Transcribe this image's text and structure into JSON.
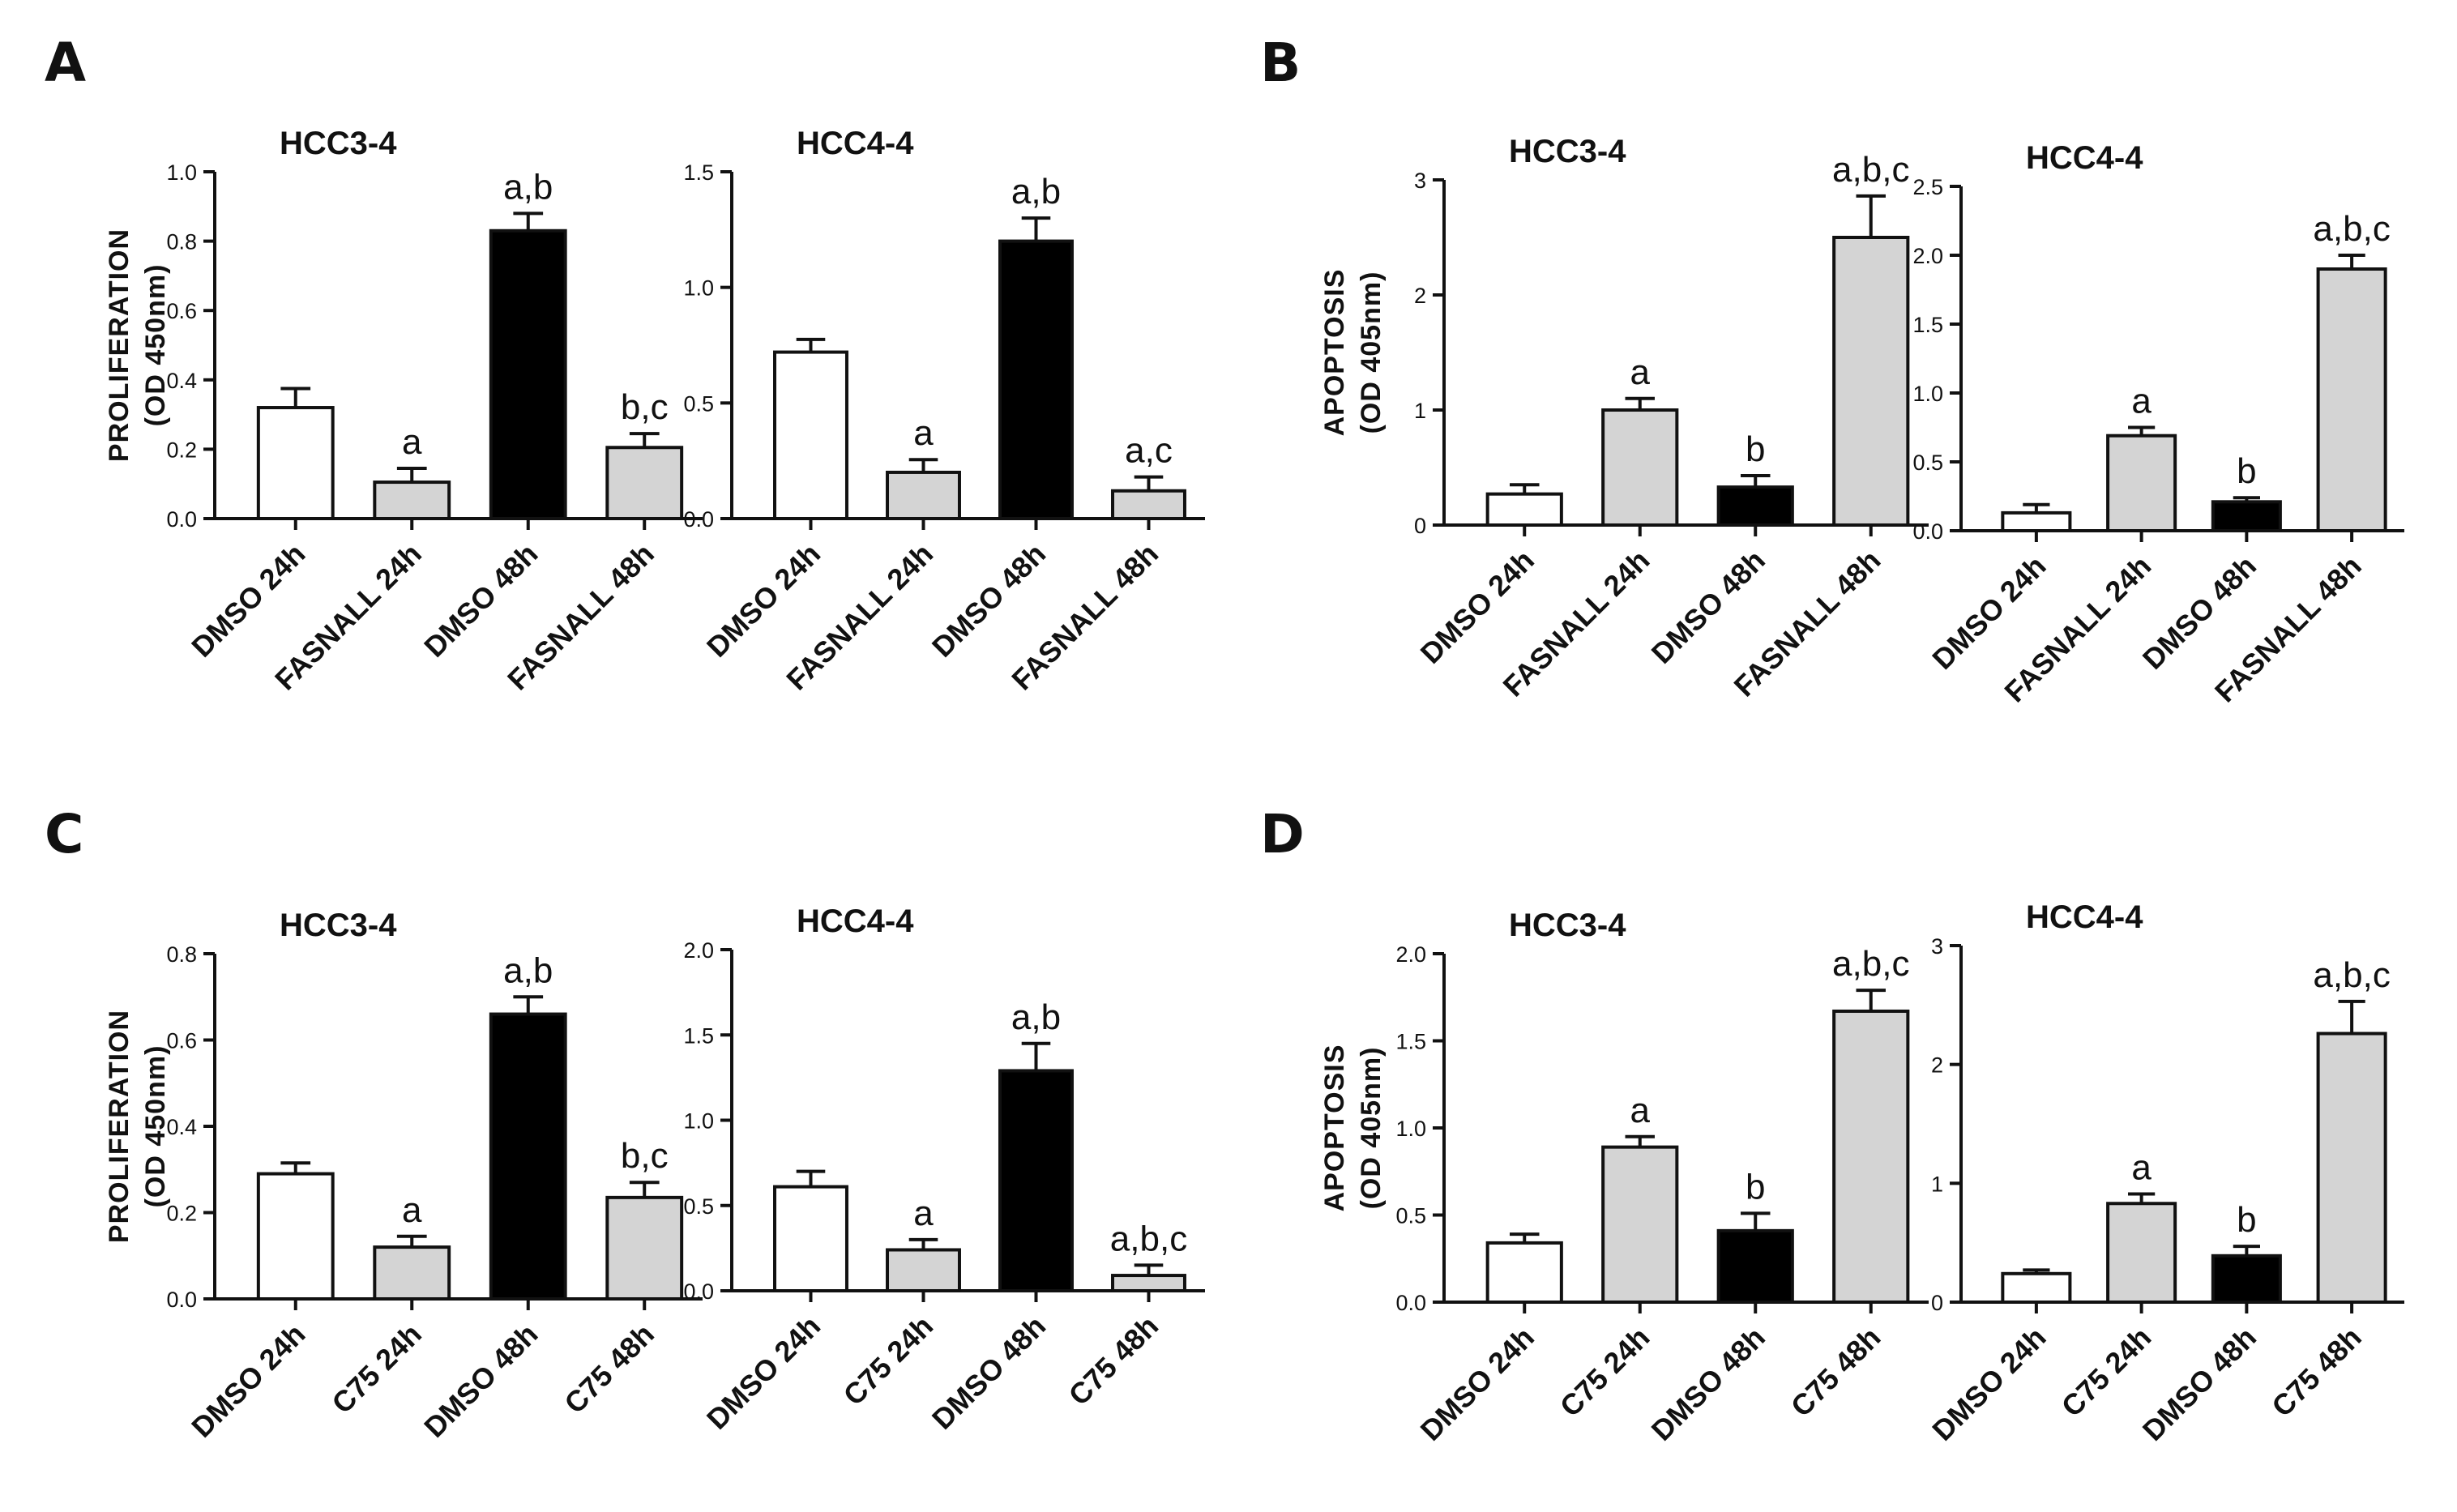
{
  "panels": [
    "A",
    "B",
    "C",
    "D"
  ],
  "colors": {
    "white": "#ffffff",
    "grey": "#d4d4d4",
    "black": "#000000",
    "ink": "#111111"
  },
  "chart_data": [
    {
      "type": "bar",
      "panel": "A",
      "title": "HCC3-4",
      "ylabel": [
        "PROLIFERATION",
        "(OD 450nm)"
      ],
      "categories": [
        "DMSO 24h",
        "FASNALL 24h",
        "DMSO 48h",
        "FASNALL 48h"
      ],
      "values": [
        0.32,
        0.105,
        0.83,
        0.205
      ],
      "errors": [
        0.055,
        0.04,
        0.05,
        0.04
      ],
      "fills": [
        "white",
        "grey",
        "black",
        "grey"
      ],
      "annotations": [
        "",
        "a",
        "a,b",
        "b,c"
      ],
      "ylim": [
        0,
        1.0
      ],
      "yticks": [
        0.0,
        0.2,
        0.4,
        0.6,
        0.8,
        1.0
      ],
      "ytick_labels": [
        "0.0",
        "0.2",
        "0.4",
        "0.6",
        "0.8",
        "1.0"
      ]
    },
    {
      "type": "bar",
      "panel": "A",
      "title": "HCC4-4",
      "ylabel": null,
      "categories": [
        "DMSO 24h",
        "FASNALL 24h",
        "DMSO 48h",
        "FASNALL 48h"
      ],
      "values": [
        0.72,
        0.2,
        1.2,
        0.12
      ],
      "errors": [
        0.055,
        0.055,
        0.1,
        0.06
      ],
      "fills": [
        "white",
        "grey",
        "black",
        "grey"
      ],
      "annotations": [
        "",
        "a",
        "a,b",
        "a,c"
      ],
      "ylim": [
        0,
        1.5
      ],
      "yticks": [
        0.0,
        0.5,
        1.0,
        1.5
      ],
      "ytick_labels": [
        "0.0",
        "0.5",
        "1.0",
        "1.5"
      ]
    },
    {
      "type": "bar",
      "panel": "B",
      "title": "HCC3-4",
      "ylabel": [
        "APOPTOSIS",
        "(OD 405nm)"
      ],
      "categories": [
        "DMSO 24h",
        "FASNALL 24h",
        "DMSO 48h",
        "FASNALL 48h"
      ],
      "values": [
        0.27,
        1.0,
        0.33,
        2.5
      ],
      "errors": [
        0.08,
        0.1,
        0.1,
        0.36
      ],
      "fills": [
        "white",
        "grey",
        "black",
        "grey"
      ],
      "annotations": [
        "",
        "a",
        "b",
        "a,b,c"
      ],
      "ylim": [
        0,
        3
      ],
      "yticks": [
        0,
        1,
        2,
        3
      ],
      "ytick_labels": [
        "0",
        "1",
        "2",
        "3"
      ]
    },
    {
      "type": "bar",
      "panel": "B",
      "title": "HCC4-4",
      "ylabel": null,
      "categories": [
        "DMSO 24h",
        "FASNALL 24h",
        "DMSO 48h",
        "FASNALL 48h"
      ],
      "values": [
        0.13,
        0.69,
        0.21,
        1.9
      ],
      "errors": [
        0.06,
        0.06,
        0.03,
        0.1
      ],
      "fills": [
        "white",
        "grey",
        "black",
        "grey"
      ],
      "annotations": [
        "",
        "a",
        "b",
        "a,b,c"
      ],
      "ylim": [
        0,
        2.5
      ],
      "yticks": [
        0.0,
        0.5,
        1.0,
        1.5,
        2.0,
        2.5
      ],
      "ytick_labels": [
        "0.0",
        "0.5",
        "1.0",
        "1.5",
        "2.0",
        "2.5"
      ]
    },
    {
      "type": "bar",
      "panel": "C",
      "title": "HCC3-4",
      "ylabel": [
        "PROLIFERATION",
        "(OD 450nm)"
      ],
      "categories": [
        "DMSO 24h",
        "C75 24h",
        "DMSO 48h",
        "C75 48h"
      ],
      "values": [
        0.29,
        0.12,
        0.66,
        0.235
      ],
      "errors": [
        0.025,
        0.025,
        0.04,
        0.035
      ],
      "fills": [
        "white",
        "grey",
        "black",
        "grey"
      ],
      "annotations": [
        "",
        "a",
        "a,b",
        "b,c"
      ],
      "ylim": [
        0,
        0.8
      ],
      "yticks": [
        0.0,
        0.2,
        0.4,
        0.6,
        0.8
      ],
      "ytick_labels": [
        "0.0",
        "0.2",
        "0.4",
        "0.6",
        "0.8"
      ]
    },
    {
      "type": "bar",
      "panel": "C",
      "title": "HCC4-4",
      "ylabel": null,
      "categories": [
        "DMSO 24h",
        "C75 24h",
        "DMSO 48h",
        "C75 48h"
      ],
      "values": [
        0.61,
        0.24,
        1.29,
        0.09
      ],
      "errors": [
        0.09,
        0.06,
        0.16,
        0.06
      ],
      "fills": [
        "white",
        "grey",
        "black",
        "grey"
      ],
      "annotations": [
        "",
        "a",
        "a,b",
        "a,b,c"
      ],
      "ylim": [
        0,
        2.0
      ],
      "yticks": [
        0.0,
        0.5,
        1.0,
        1.5,
        2.0
      ],
      "ytick_labels": [
        "0.0",
        "0.5",
        "1.0",
        "1.5",
        "2.0"
      ]
    },
    {
      "type": "bar",
      "panel": "D",
      "title": "HCC3-4",
      "ylabel": [
        "APOPTOSIS",
        "(OD 405nm)"
      ],
      "categories": [
        "DMSO 24h",
        "C75 24h",
        "DMSO 48h",
        "C75 48h"
      ],
      "values": [
        0.34,
        0.89,
        0.41,
        1.67
      ],
      "errors": [
        0.05,
        0.06,
        0.1,
        0.12
      ],
      "fills": [
        "white",
        "grey",
        "black",
        "grey"
      ],
      "annotations": [
        "",
        "a",
        "b",
        "a,b,c"
      ],
      "ylim": [
        0,
        2.0
      ],
      "yticks": [
        0.0,
        0.5,
        1.0,
        1.5,
        2.0
      ],
      "ytick_labels": [
        "0.0",
        "0.5",
        "1.0",
        "1.5",
        "2.0"
      ]
    },
    {
      "type": "bar",
      "panel": "D",
      "title": "HCC4-4",
      "ylabel": null,
      "categories": [
        "DMSO 24h",
        "C75 24h",
        "DMSO 48h",
        "C75 48h"
      ],
      "values": [
        0.24,
        0.83,
        0.39,
        2.26
      ],
      "errors": [
        0.03,
        0.08,
        0.08,
        0.27
      ],
      "fills": [
        "white",
        "grey",
        "black",
        "grey"
      ],
      "annotations": [
        "",
        "a",
        "b",
        "a,b,c"
      ],
      "ylim": [
        0,
        3
      ],
      "yticks": [
        0,
        1,
        2,
        3
      ],
      "ytick_labels": [
        "0",
        "1",
        "2",
        "3"
      ]
    }
  ]
}
